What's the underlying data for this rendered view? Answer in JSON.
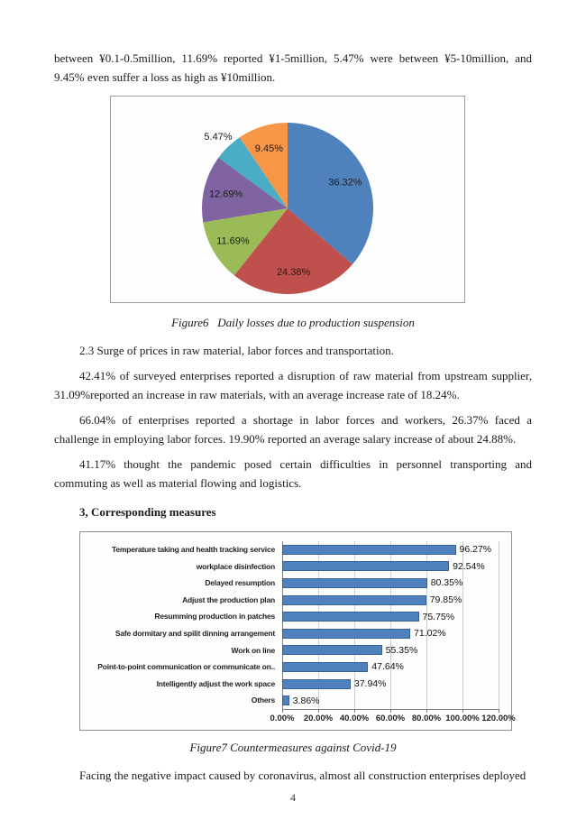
{
  "content": {
    "paragraphs": {
      "p1": "between ¥0.1-0.5million, 11.69% reported ¥1-5million, 5.47% were between ¥5-10million, and 9.45% even suffer a loss as high as ¥10million.",
      "p2": "2.3 Surge of prices in raw material, labor forces and transportation.",
      "p3": "42.41% of surveyed enterprises reported a disruption of raw material from upstream supplier, 31.09%reported an increase in raw materials, with an average increase rate of 18.24%.",
      "p4": "66.04% of enterprises reported a shortage in labor forces and workers, 26.37% faced a challenge in employing labor forces. 19.90% reported an average salary increase of about 24.88%.",
      "p5": "41.17% thought the pandemic posed certain difficulties in personnel transporting and commuting as well as material flowing and logistics.",
      "p6": "Facing the negative impact caused by coronavirus, almost all construction enterprises deployed"
    },
    "heading": "3, Corresponding measures",
    "captions": {
      "figure6": "Figure6   Daily losses due to production suspension",
      "figure7": "Figure7 Countermeasures against Covid-19"
    },
    "page_number": "4"
  },
  "chart_data": [
    {
      "type": "pie",
      "title": "Figure6 Daily losses due to production suspension",
      "labels": [
        "36.32%",
        "24.38%",
        "11.69%",
        "12.69%",
        "5.47%",
        "9.45%"
      ],
      "values": [
        36.32,
        24.38,
        11.69,
        12.69,
        5.47,
        9.45
      ],
      "colors": [
        "#4F81BD",
        "#C0504D",
        "#9BBB59",
        "#8064A2",
        "#4BACC6",
        "#F79646"
      ],
      "start_angle_deg": 0,
      "direction": "clockwise",
      "legend": "none"
    },
    {
      "type": "bar",
      "orientation": "horizontal",
      "title": "Figure7 Countermeasures against Covid-19",
      "categories": [
        "Temperature taking and health tracking service",
        "workplace disinfection",
        "Delayed resumption",
        "Adjust the production plan",
        "Resumming production in patches",
        "Safe dormitary and spilit dinning arrangement",
        "Work on line",
        "Point-to-point communication or communicate on..",
        "Intelligently adjust the work space",
        "Others"
      ],
      "values": [
        96.27,
        92.54,
        80.35,
        79.85,
        75.75,
        71.02,
        55.35,
        47.64,
        37.94,
        3.86
      ],
      "value_labels": [
        "96.27%",
        "92.54%",
        "80.35%",
        "79.85%",
        "75.75%",
        "71.02%",
        "55.35%",
        "47.64%",
        "37.94%",
        "3.86%"
      ],
      "x_ticks": [
        "0.00%",
        "20.00%",
        "40.00%",
        "60.00%",
        "80.00%",
        "100.00%",
        "120.00%"
      ],
      "xlim": [
        0,
        120
      ],
      "bar_color": "#4F81BD",
      "grid": true,
      "legend": "none"
    }
  ]
}
